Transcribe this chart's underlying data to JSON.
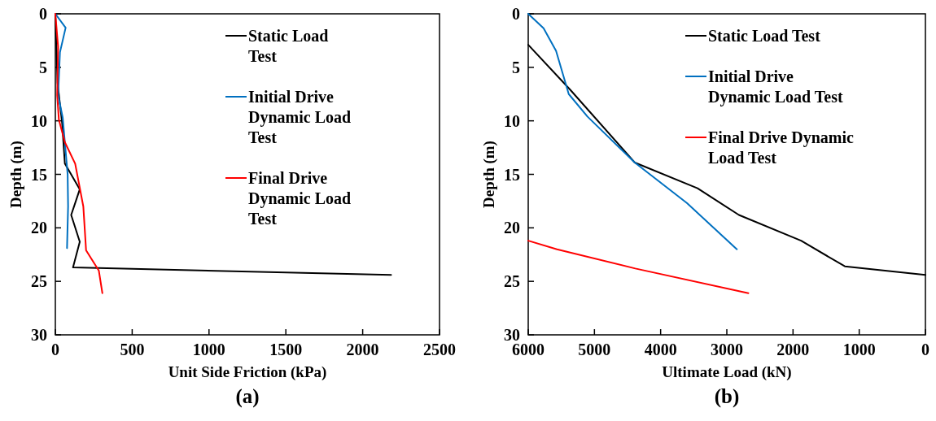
{
  "chart_data": [
    {
      "type": "line",
      "title": "(a)",
      "xlabel": "Unit Side Friction (kPa)",
      "ylabel": "Depth (m)",
      "xlim": [
        0,
        2500
      ],
      "xticks": [
        0,
        500,
        1000,
        1500,
        2000,
        2500
      ],
      "ylim": [
        30,
        0
      ],
      "yticks": [
        0,
        5,
        10,
        15,
        20,
        25,
        30
      ],
      "legend": "top right",
      "grid": false,
      "marker": "none",
      "series": [
        {
          "name": "Static Load Test",
          "color": "#000000",
          "x": [
            0,
            14,
            44,
            62,
            159,
            103,
            159,
            115,
            2185
          ],
          "values": [
            0,
            6.4,
            10.2,
            14.0,
            16.4,
            18.8,
            21.3,
            23.7,
            24.4
          ]
        },
        {
          "name": "Initial Drive Dynamic Load Test",
          "color": "#0070c0",
          "x": [
            0,
            67,
            30,
            18,
            48,
            80,
            83,
            76
          ],
          "values": [
            0,
            1.3,
            3.6,
            7.6,
            9.7,
            15,
            18,
            21.9
          ]
        },
        {
          "name": "Final Drive Dynamic Load Test",
          "color": "#ff0000",
          "x": [
            0,
            18,
            12,
            23,
            62,
            129,
            182,
            200,
            283,
            306
          ],
          "values": [
            0,
            3.1,
            7.6,
            9.9,
            12,
            14,
            18,
            22.1,
            24,
            26.1
          ]
        }
      ]
    },
    {
      "type": "line",
      "title": "(b)",
      "xlabel": "Ultimate Load (kN)",
      "ylabel": "Depth (m)",
      "xlim": [
        6000,
        0
      ],
      "xticks": [
        6000,
        5000,
        4000,
        3000,
        2000,
        1000,
        0
      ],
      "ylim": [
        30,
        0
      ],
      "yticks": [
        0,
        5,
        10,
        15,
        20,
        25,
        30
      ],
      "legend": "top right",
      "grid": false,
      "marker": "none",
      "series": [
        {
          "name": "Static Load Test",
          "color": "#000000",
          "x": [
            6000,
            5365,
            4391,
            3443,
            2817,
            1878,
            1217,
            0
          ],
          "values": [
            2.9,
            7.1,
            13.9,
            16.3,
            18.8,
            21.2,
            23.6,
            24.4
          ]
        },
        {
          "name": "Initial Drive Dynamic Load Test",
          "color": "#0070c0",
          "x": [
            6000,
            5768,
            5580,
            5388,
            5106,
            4391,
            3600,
            2848
          ],
          "values": [
            0,
            1.35,
            3.45,
            7.5,
            9.6,
            13.9,
            17.7,
            22
          ]
        },
        {
          "name": "Final Drive Dynamic Load Test",
          "color": "#ff0000",
          "x": [
            6000,
            5566,
            4382,
            2674
          ],
          "values": [
            21.2,
            22.0,
            23.8,
            26.1
          ]
        }
      ]
    }
  ]
}
